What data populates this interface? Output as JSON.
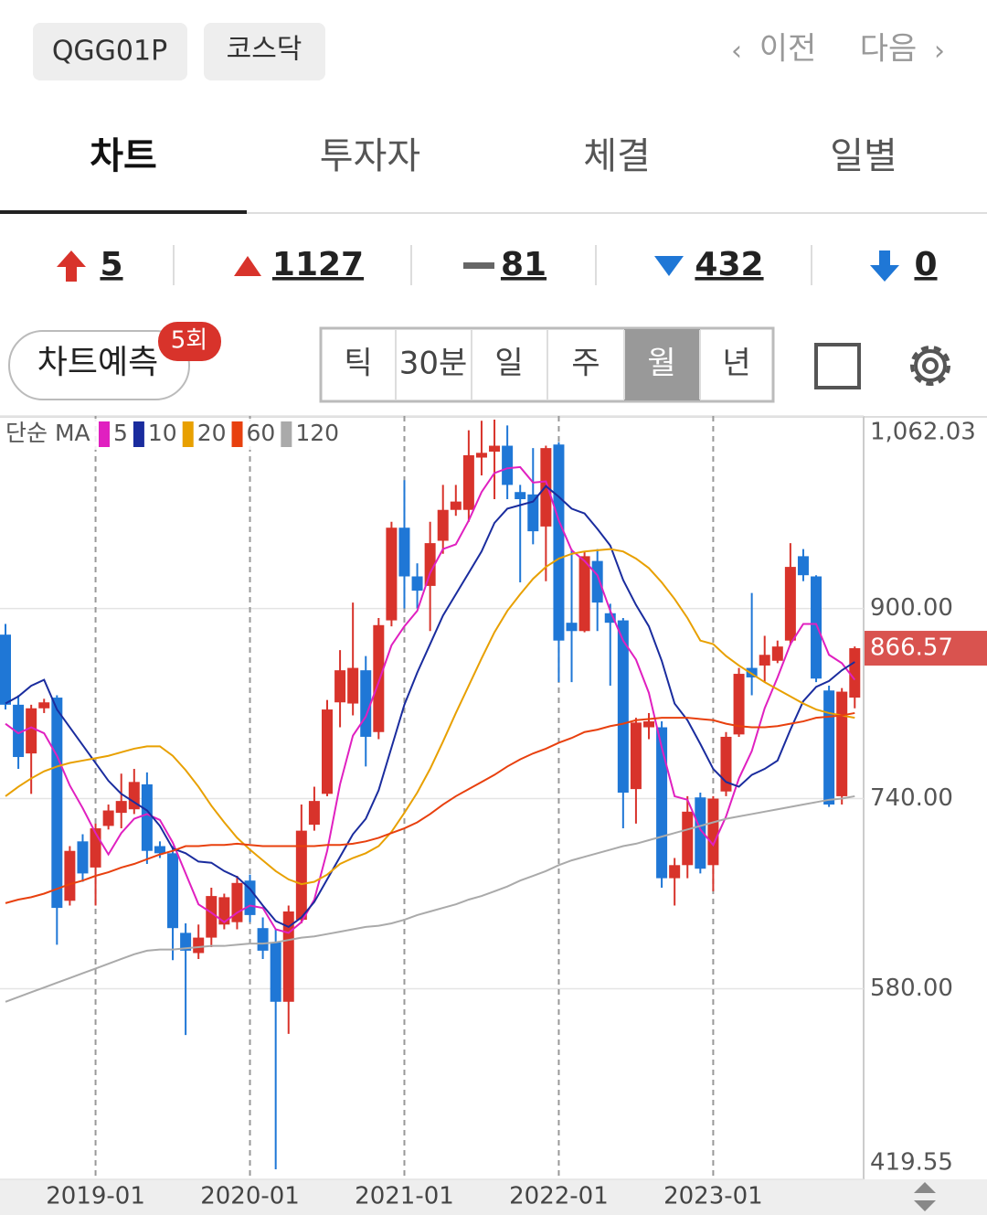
{
  "header": {
    "code": "QGG01P",
    "market": "코스닥",
    "prev": "이전",
    "next": "다음"
  },
  "tabs": [
    "차트",
    "투자자",
    "체결",
    "일별"
  ],
  "counts": [
    5,
    1127,
    81,
    432,
    0
  ],
  "prediction": {
    "label": "차트예측",
    "badge": "5회"
  },
  "periods": [
    "틱",
    "30분",
    "일",
    "주",
    "월",
    "년"
  ],
  "chart_data": {
    "type": "candlestick",
    "legend_title": "단순 MA",
    "categories": [
      null,
      null,
      null,
      null,
      null,
      null,
      null,
      "2019-01",
      null,
      null,
      null,
      null,
      null,
      null,
      null,
      null,
      null,
      null,
      null,
      "2020-01",
      null,
      null,
      null,
      null,
      null,
      null,
      null,
      null,
      null,
      null,
      null,
      "2021-01",
      null,
      null,
      null,
      null,
      null,
      null,
      null,
      null,
      null,
      null,
      null,
      "2022-01",
      null,
      null,
      null,
      null,
      null,
      null,
      null,
      null,
      null,
      null,
      null,
      "2023-01",
      null,
      null,
      null,
      null,
      null,
      null,
      null,
      null,
      null,
      null,
      null
    ],
    "open": [
      878,
      819,
      778,
      816,
      825,
      654,
      704,
      682,
      717,
      728,
      731,
      752,
      700,
      694,
      627,
      610,
      623,
      634,
      636,
      671,
      631,
      619,
      569,
      638,
      718,
      744,
      821,
      820,
      848,
      796,
      890,
      968,
      927,
      919,
      957,
      983,
      983,
      1027,
      1032,
      1037,
      998,
      996,
      969,
      1038,
      888,
      881,
      940,
      896,
      890,
      748,
      800,
      800,
      673,
      684,
      741,
      684,
      746,
      794,
      850,
      852,
      856,
      873,
      944,
      927,
      831,
      742,
      825
    ],
    "high": [
      887,
      827,
      819,
      824,
      827,
      700,
      710,
      719,
      735,
      761,
      765,
      762,
      704,
      700,
      635,
      634,
      665,
      660,
      675,
      676,
      640,
      630,
      650,
      735,
      750,
      823,
      865,
      905,
      860,
      892,
      973,
      1008,
      938,
      973,
      1004,
      1004,
      1050,
      1058,
      1059,
      1054,
      1004,
      1035,
      1037,
      1040,
      950,
      948,
      950,
      904,
      892,
      808,
      812,
      805,
      690,
      742,
      745,
      742,
      796,
      850,
      913,
      877,
      873,
      955,
      950,
      928,
      835,
      833,
      868
    ],
    "low": [
      815,
      765,
      744,
      812,
      617,
      650,
      670,
      650,
      714,
      715,
      727,
      685,
      690,
      604,
      541,
      605,
      615,
      630,
      630,
      636,
      605,
      428,
      542,
      635,
      713,
      742,
      800,
      810,
      767,
      790,
      885,
      900,
      900,
      881,
      946,
      978,
      973,
      1012,
      992,
      992,
      922,
      954,
      923,
      838,
      838,
      880,
      881,
      835,
      715,
      719,
      790,
      665,
      650,
      673,
      677,
      662,
      742,
      792,
      827,
      838,
      854,
      869,
      923,
      838,
      733,
      735,
      816
    ],
    "close": [
      819,
      775,
      816,
      821,
      648,
      696,
      677,
      715,
      730,
      738,
      754,
      696,
      694,
      631,
      612,
      623,
      658,
      657,
      669,
      642,
      612,
      569,
      645,
      713,
      738,
      815,
      848,
      850,
      792,
      886,
      968,
      927,
      915,
      955,
      983,
      990,
      1029,
      1031,
      1037,
      1004,
      992,
      965,
      1035,
      873,
      881,
      944,
      905,
      888,
      745,
      804,
      805,
      673,
      684,
      729,
      681,
      740,
      792,
      845,
      842,
      861,
      868,
      935,
      928,
      841,
      735,
      830,
      866.57
    ],
    "up_color": "#d8332b",
    "down_color": "#1f77d6",
    "series": [
      {
        "name": "5",
        "color": "#e020c0",
        "values": [
          803,
          795,
          800,
          795,
          776,
          751,
          732,
          711,
          693,
          711,
          723,
          727,
          722,
          703,
          677,
          651,
          644,
          636,
          644,
          650,
          648,
          630,
          627,
          636,
          655,
          696,
          752,
          793,
          809,
          838,
          869,
          885,
          898,
          930,
          950,
          954,
          974,
          998,
          1014,
          1018,
          1019,
          1006,
          1007,
          974,
          949,
          940,
          928,
          898,
          873,
          857,
          829,
          783,
          742,
          739,
          714,
          701,
          725,
          757,
          780,
          816,
          842,
          870,
          887,
          887,
          861,
          854,
          840
        ]
      },
      {
        "name": "10",
        "color": "#1a2c9e",
        "values": [
          820,
          826,
          835,
          840,
          815,
          800,
          785,
          770,
          755,
          744,
          737,
          730,
          717,
          698,
          694,
          687,
          686,
          679,
          674,
          664,
          650,
          637,
          632,
          640,
          653,
          672,
          691,
          710,
          723,
          747,
          783,
          819,
          846,
          870,
          894,
          912,
          930,
          948,
          972,
          984,
          987,
          990,
          1003,
          994,
          984,
          980,
          967,
          953,
          924,
          903,
          885,
          856,
          820,
          806,
          786,
          765,
          754,
          750,
          760,
          765,
          772,
          798,
          822,
          834,
          839,
          848,
          855
        ]
      },
      {
        "name": "20",
        "color": "#e8a000",
        "values": [
          742,
          750,
          757,
          763,
          767,
          770,
          772,
          774,
          776,
          779,
          782,
          784,
          784,
          776,
          764,
          750,
          734,
          720,
          707,
          697,
          688,
          679,
          672,
          668,
          670,
          676,
          685,
          690,
          694,
          700,
          712,
          728,
          745,
          765,
          788,
          812,
          835,
          858,
          880,
          898,
          912,
          925,
          935,
          942,
          946,
          948,
          949,
          950,
          948,
          942,
          934,
          922,
          908,
          892,
          873,
          870,
          860,
          852,
          845,
          838,
          832,
          826,
          820,
          815,
          812,
          810,
          808
        ]
      },
      {
        "name": "60",
        "color": "#e8400e",
        "values": [
          652,
          655,
          657,
          660,
          664,
          668,
          671,
          675,
          678,
          682,
          685,
          689,
          693,
          696,
          700,
          700,
          701,
          701,
          702,
          701,
          700,
          700,
          700,
          700,
          700,
          701,
          701,
          702,
          704,
          707,
          711,
          715,
          720,
          727,
          735,
          742,
          748,
          754,
          760,
          767,
          773,
          778,
          782,
          787,
          791,
          796,
          798,
          801,
          803,
          806,
          807,
          808,
          808,
          808,
          807,
          806,
          803,
          801,
          800,
          800,
          801,
          803,
          805,
          808,
          809,
          810,
          812
        ]
      },
      {
        "name": "120",
        "color": "#aaaaaa",
        "values": [
          569,
          573,
          577,
          581,
          585,
          589,
          593,
          597,
          601,
          605,
          609,
          612,
          613,
          613,
          614,
          615,
          616,
          616,
          617,
          618,
          618,
          619,
          621,
          623,
          624,
          626,
          628,
          630,
          632,
          633,
          635,
          638,
          642,
          645,
          648,
          651,
          655,
          658,
          662,
          666,
          671,
          675,
          679,
          684,
          688,
          691,
          694,
          697,
          700,
          702,
          705,
          708,
          711,
          714,
          717,
          720,
          723,
          725,
          727,
          729,
          731,
          733,
          735,
          737,
          739,
          740,
          742
        ]
      }
    ],
    "ylim": [
      419.55,
      1062.03
    ],
    "yticks": [
      419.55,
      {
        "value": 580,
        "label": "580.00"
      },
      {
        "value": 740,
        "label": "740.00"
      },
      {
        "value": 900,
        "label": "900.00"
      },
      {
        "value": 1062.03,
        "label": "1,062.03"
      }
    ],
    "grid": true
  }
}
